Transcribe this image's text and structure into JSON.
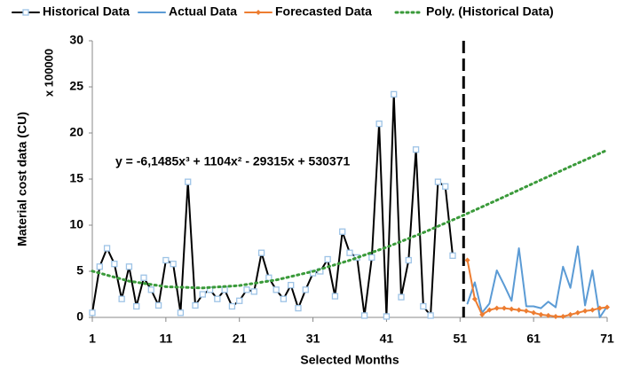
{
  "chart_data": {
    "type": "line",
    "annotation": "y = -6,1485x³ + 1104x² - 29315x + 530371",
    "y_unit_note": "x 100000",
    "xlabel": "Selected Months",
    "ylabel": "Material cost data (CU)",
    "xlim": [
      1,
      71
    ],
    "xticks": [
      1,
      11,
      21,
      31,
      41,
      51,
      61,
      71
    ],
    "ylim": [
      0,
      30
    ],
    "yticks": [
      0,
      5,
      10,
      15,
      20,
      25,
      30
    ],
    "split_x": 51,
    "series": [
      {
        "name": "Historical Data",
        "color": "#000000",
        "marker": "square",
        "marker_color": "#9dc3e6",
        "x": [
          1,
          2,
          3,
          4,
          5,
          6,
          7,
          8,
          9,
          10,
          11,
          12,
          13,
          14,
          15,
          16,
          17,
          18,
          19,
          20,
          21,
          22,
          23,
          24,
          25,
          26,
          27,
          28,
          29,
          30,
          31,
          32,
          33,
          34,
          35,
          36,
          37,
          38,
          39,
          40,
          41,
          42,
          43,
          44,
          45,
          46,
          47,
          48,
          49,
          50
        ],
        "values": [
          0.5,
          5.5,
          7.5,
          5.8,
          2,
          5.5,
          1.2,
          4.3,
          3,
          1.3,
          6.2,
          5.8,
          0.5,
          14.7,
          1.3,
          2.5,
          3,
          2,
          3,
          1.2,
          1.8,
          3,
          2.8,
          7,
          4.3,
          3,
          2,
          3.5,
          1,
          3,
          4.8,
          5,
          6.3,
          2.3,
          9.3,
          7,
          6.5,
          0.2,
          6.5,
          21,
          0.1,
          24.2,
          2.2,
          6.2,
          18.2,
          1.2,
          0.2,
          14.7,
          14.2,
          6.7
        ]
      },
      {
        "name": "Actual Data",
        "color": "#5b9bd5",
        "x": [
          52,
          53,
          54,
          55,
          56,
          57,
          58,
          59,
          60,
          61,
          62,
          63,
          64,
          65,
          66,
          67,
          68,
          69,
          70,
          71
        ],
        "values": [
          1.5,
          3.8,
          0.5,
          1.5,
          5.1,
          3.5,
          1.8,
          7.5,
          1.2,
          1.2,
          1,
          1.7,
          1.1,
          5.5,
          3.2,
          7.7,
          1.3,
          5.1,
          0,
          1.2
        ]
      },
      {
        "name": "Forecasted Data",
        "color": "#ed7d31",
        "marker": "diamond",
        "marker_color": "#ed7d31",
        "x": [
          52,
          53,
          54,
          55,
          56,
          57,
          58,
          59,
          60,
          61,
          62,
          63,
          64,
          65,
          66,
          67,
          68,
          69,
          70,
          71
        ],
        "values": [
          6.2,
          2,
          0.3,
          0.8,
          1,
          1,
          0.9,
          0.8,
          0.7,
          0.5,
          0.3,
          0.2,
          0.1,
          0.1,
          0.3,
          0.5,
          0.7,
          0.8,
          1,
          1.1
        ]
      },
      {
        "name": "Poly. (Historical Data)",
        "color": "#3a9a3a",
        "dotted": true,
        "x": [
          1,
          6,
          11,
          16,
          21,
          26,
          31,
          36,
          41,
          46,
          51,
          56,
          61,
          66,
          71
        ],
        "values": [
          5.02,
          3.93,
          3.33,
          3.19,
          3.45,
          4.06,
          4.99,
          6.19,
          7.61,
          9.19,
          10.91,
          12.71,
          14.55,
          16.37,
          18.14
        ]
      }
    ]
  }
}
